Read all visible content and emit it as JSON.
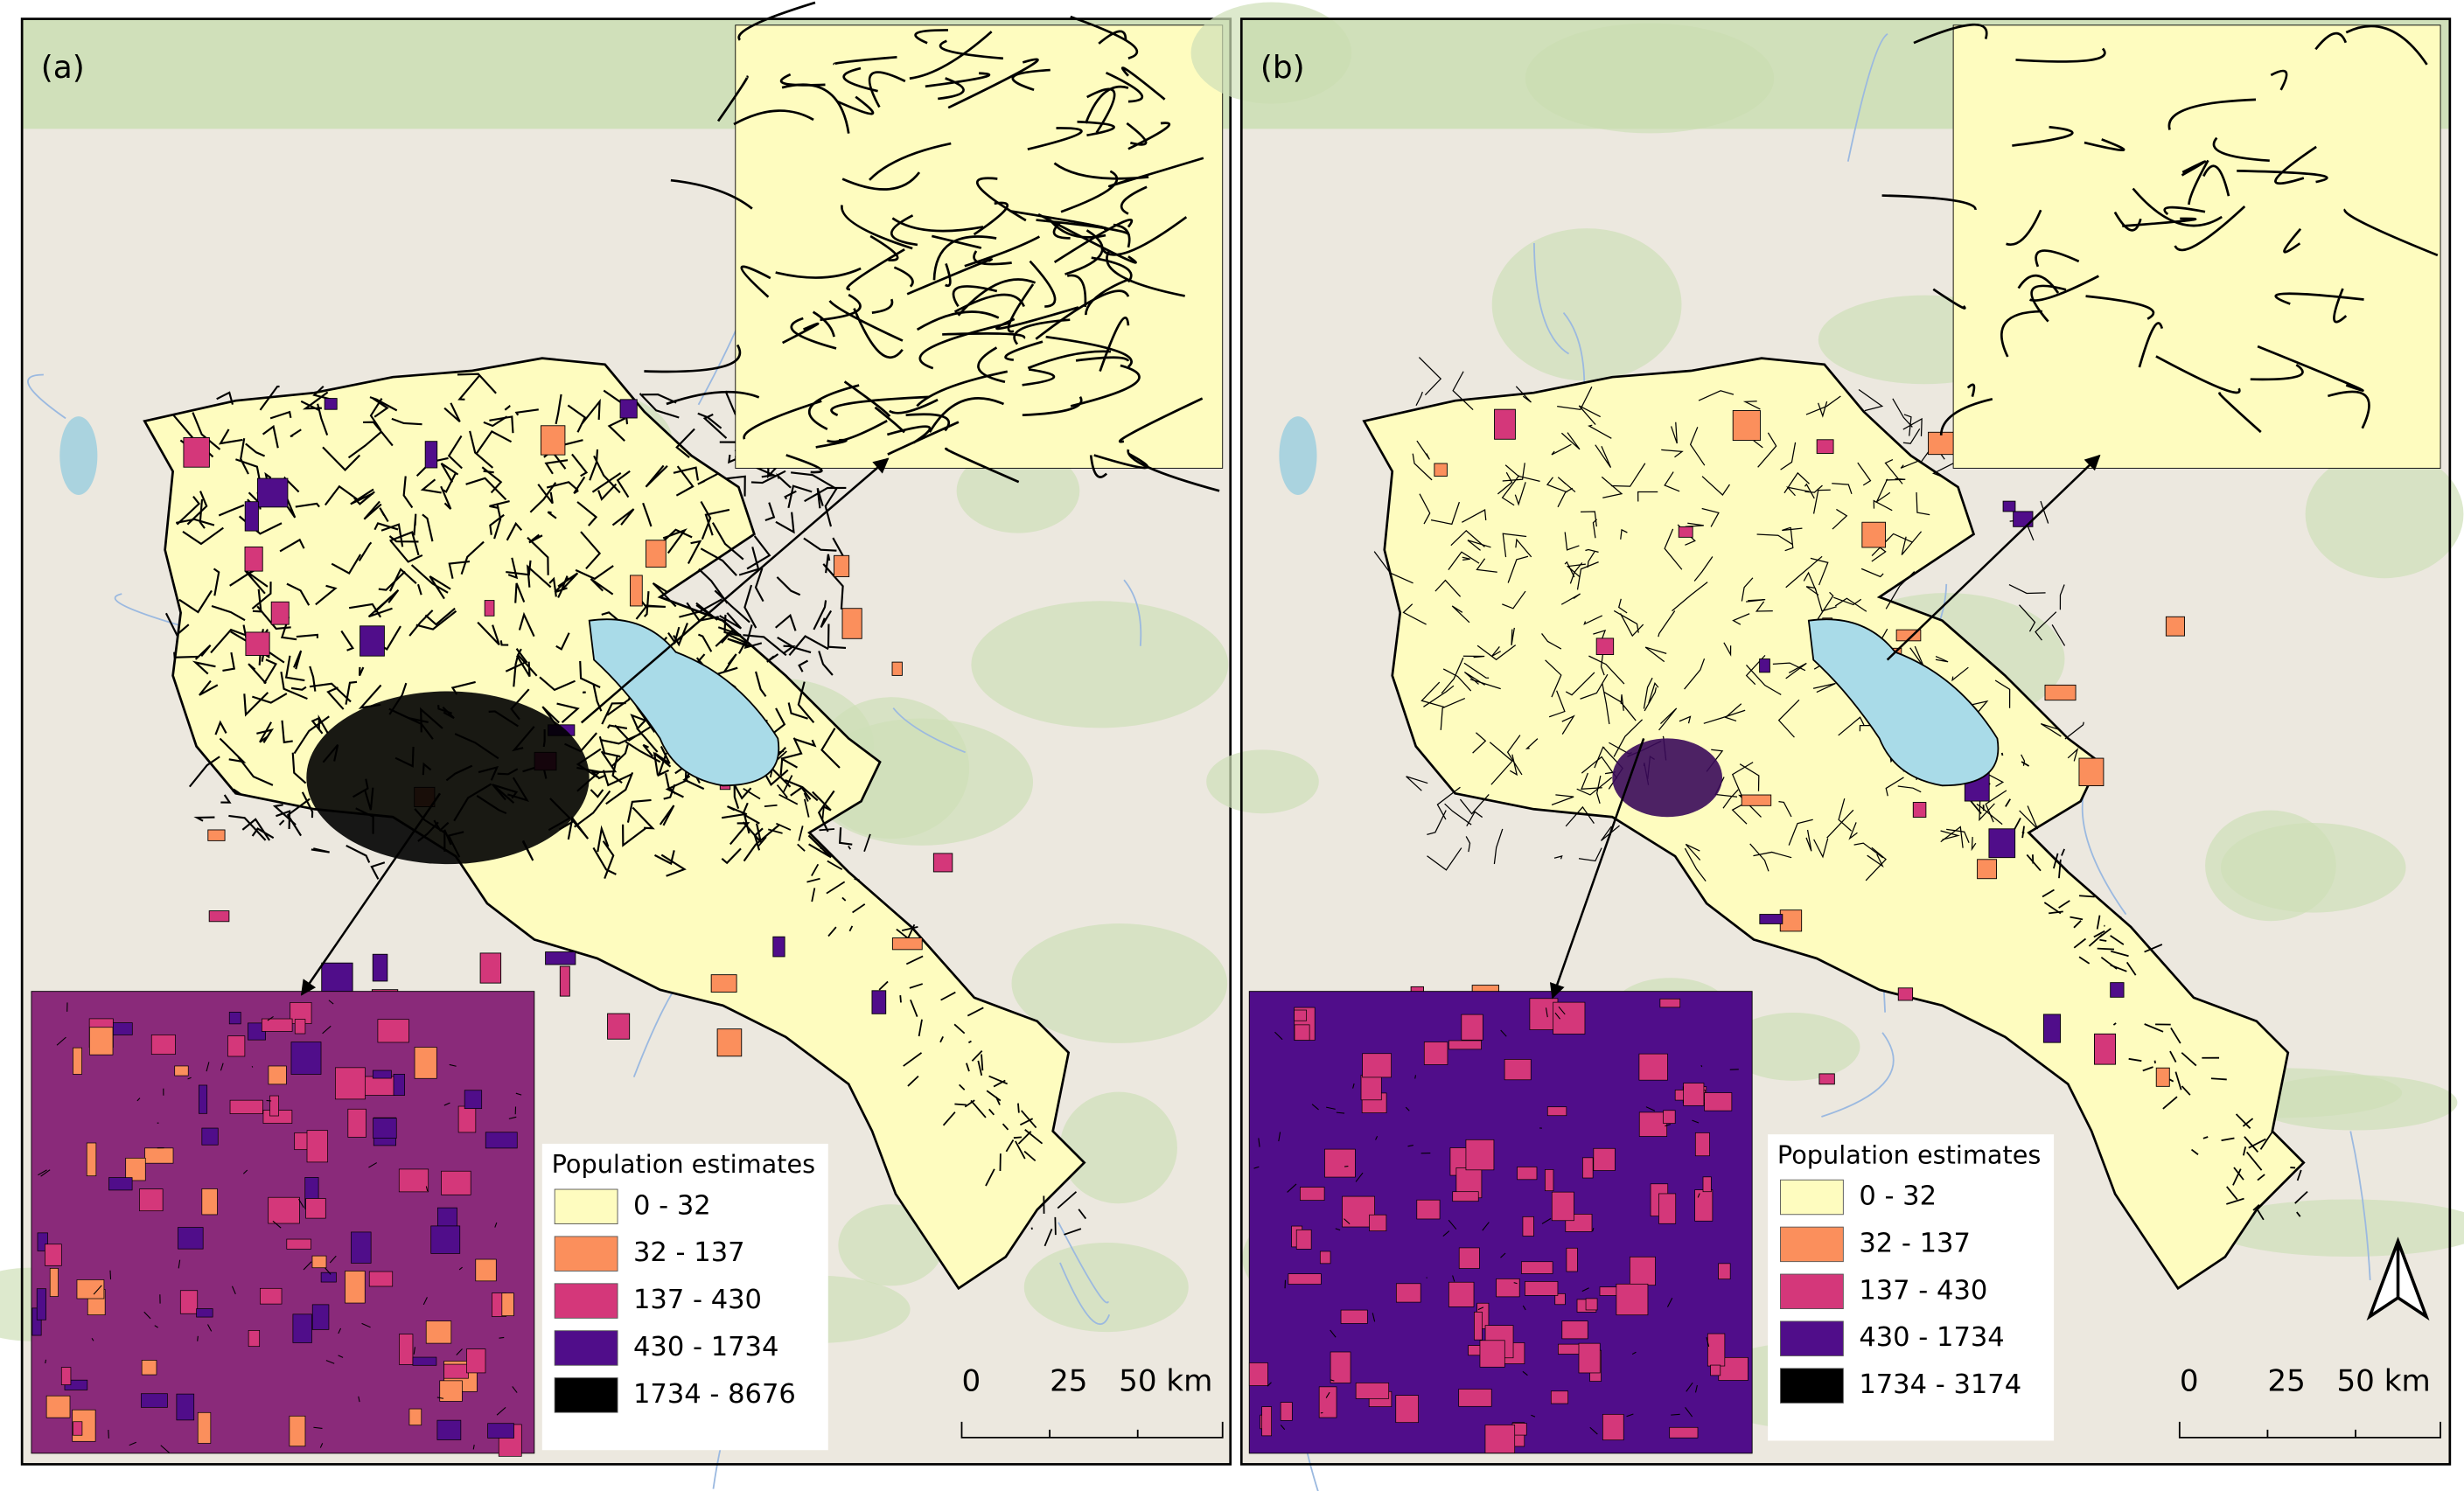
{
  "panels": [
    {
      "label": "(a)",
      "legend": {
        "title": "Population estimates",
        "items": [
          {
            "label": "0 - 32",
            "color": "#fefcbf"
          },
          {
            "label": "32 - 137",
            "color": "#fb8f5c"
          },
          {
            "label": "137 - 430",
            "color": "#d4377a"
          },
          {
            "label": "430 - 1734",
            "color": "#500d8a"
          },
          {
            "label": "1734 - 8676",
            "color": "#000000"
          }
        ]
      },
      "scale_bar": [
        "0",
        "25",
        "50 km"
      ]
    },
    {
      "label": "(b)",
      "legend": {
        "title": "Population estimates",
        "items": [
          {
            "label": "0 - 32",
            "color": "#fefcbf"
          },
          {
            "label": "32 - 137",
            "color": "#fb8f5c"
          },
          {
            "label": "137 - 430",
            "color": "#d4377a"
          },
          {
            "label": "430 - 1734",
            "color": "#500d8a"
          },
          {
            "label": "1734 - 3174",
            "color": "#000000"
          }
        ]
      },
      "scale_bar": [
        "0",
        "25",
        "50 km"
      ]
    }
  ]
}
